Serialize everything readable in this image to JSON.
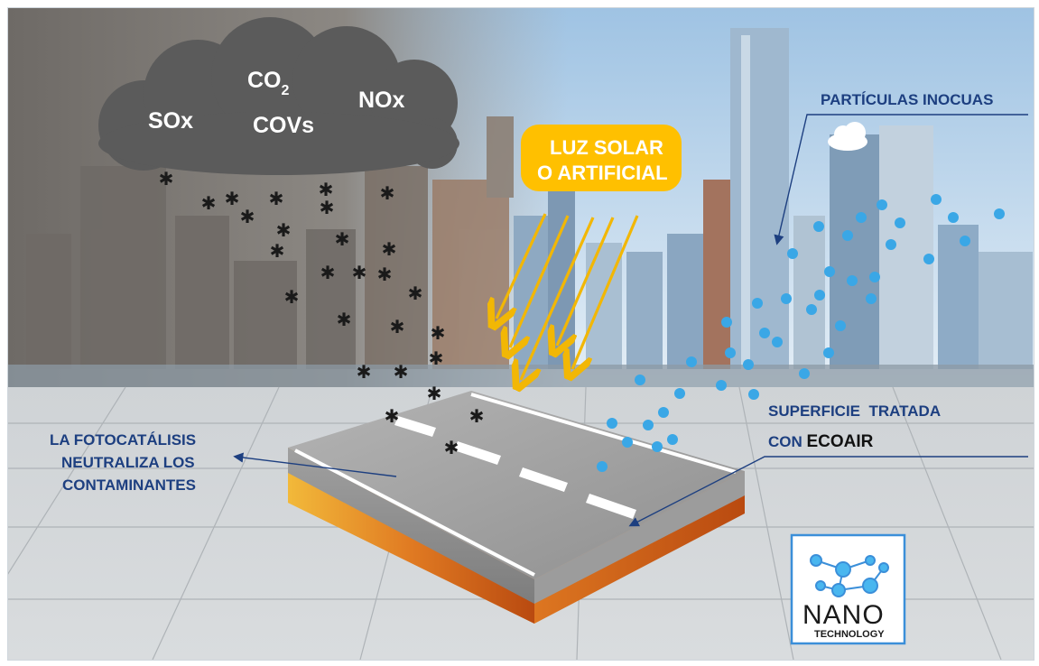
{
  "cloud": {
    "sox": "SOx",
    "co2_base": "CO",
    "co2_sub": "2",
    "covs": "COVs",
    "nox": "NOx"
  },
  "sunlight": {
    "line1": "LUZ SOLAR",
    "line2": "O ARTIFICIAL"
  },
  "labels": {
    "particles": "PARTÍCULAS INOCUAS",
    "surface_line1": "SUPERFICIE  TRATADA",
    "surface_line2_prefix": "CON ",
    "surface_brand": "ECOAIR",
    "photocatalysis_line1": "LA FOTOCATÁLISIS",
    "photocatalysis_line2": "NEUTRALIZA LOS",
    "photocatalysis_line3": "CONTAMINANTES"
  },
  "logo": {
    "nano": "NANO",
    "technology": "TECHNOLOGY"
  },
  "colors": {
    "polluted_sky": "#8a8680",
    "clean_sky": "#bcd6ec",
    "cloud": "#5b5b5b",
    "pollutant_dot": "#1a1a1a",
    "clean_particle": "#3aa7e6",
    "sun_box": "#ffc000",
    "sun_ray": "#f2b705",
    "label_blue": "#1d3f80",
    "road_top": "#9a9a9a",
    "road_side": "#e07a22",
    "logo_blue": "#3b8fd9"
  }
}
